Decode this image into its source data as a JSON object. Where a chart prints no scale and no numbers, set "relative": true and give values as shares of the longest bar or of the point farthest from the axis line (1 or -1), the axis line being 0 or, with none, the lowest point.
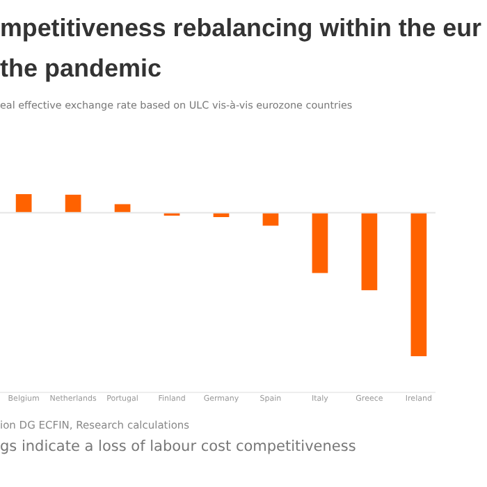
{
  "chart_data": {
    "type": "bar",
    "title": "mpetitiveness rebalancing within the eur\n the pandemic",
    "subtitle": "eal effective exchange rate based on ULC vis-à-vis eurozone countries",
    "categories": [
      "Belgium",
      "Netherlands",
      "Portugal",
      "Finland",
      "Germany",
      "Spain",
      "Italy",
      "Greece",
      "Ireland"
    ],
    "values": [
      0.13,
      0.126,
      0.06,
      -0.02,
      -0.03,
      -0.09,
      -0.42,
      -0.54,
      -1
    ],
    "color": "#ff6200",
    "relative": true,
    "annotations": [
      "ion DG ECFIN, Research calculations",
      "gs indicate a loss of labour cost competitiveness"
    ]
  }
}
